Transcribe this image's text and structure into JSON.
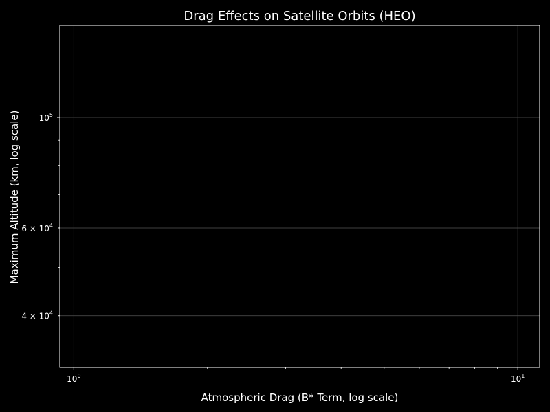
{
  "chart_data": {
    "type": "scatter",
    "title": "Drag Effects on Satellite Orbits (HEO)",
    "xlabel": "Atmospheric Drag (B* Term, log scale)",
    "ylabel": "Maximum Altitude (km, log scale)",
    "xscale": "log",
    "yscale": "log",
    "xlim": [
      0.93,
      11.2
    ],
    "ylim": [
      31500,
      153000
    ],
    "grid": true,
    "series": [],
    "x_ticks": [
      {
        "value": 1,
        "base": "10",
        "exp": "0"
      },
      {
        "value": 10,
        "base": "10",
        "exp": "1"
      }
    ],
    "y_ticks": [
      {
        "value": 40000,
        "base": "4 × 10",
        "exp": "4"
      },
      {
        "value": 60000,
        "base": "6 × 10",
        "exp": "4"
      },
      {
        "value": 100000,
        "base": "10",
        "exp": "5"
      }
    ],
    "colors": {
      "background": "#000000",
      "foreground": "#ffffff",
      "grid": "#555555"
    }
  }
}
